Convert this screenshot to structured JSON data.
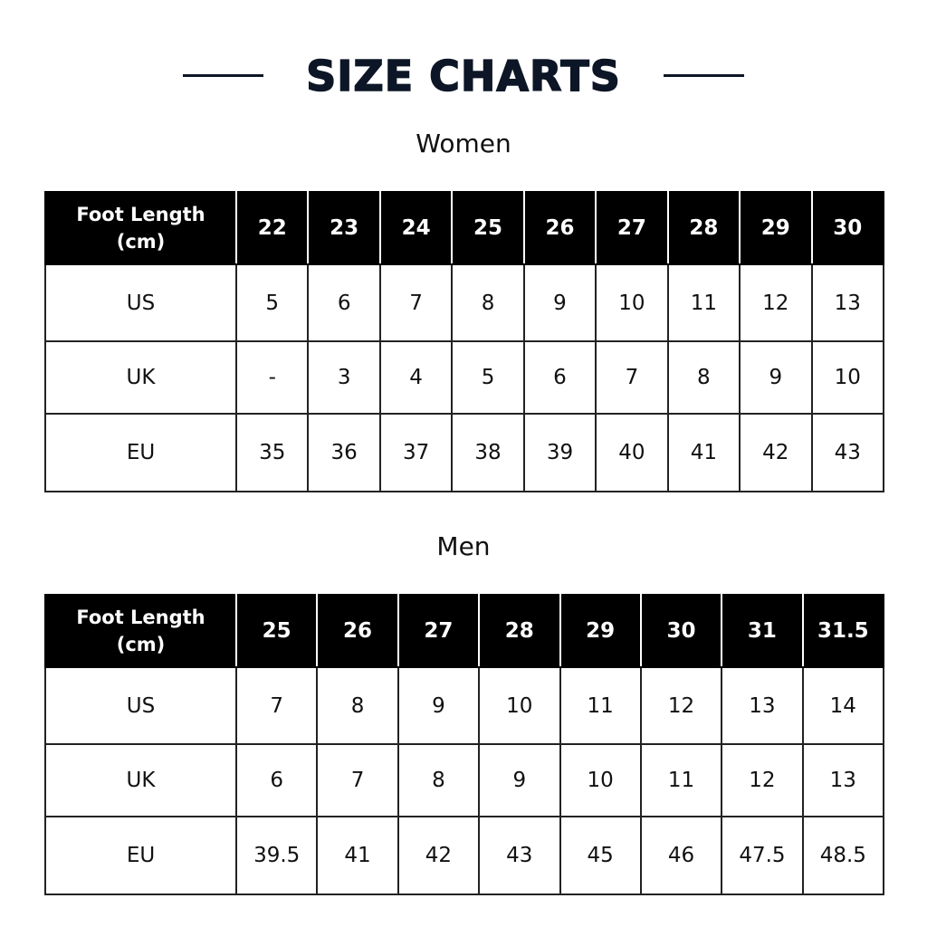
{
  "title": "SIZE CHARTS",
  "colors": {
    "title": "#0d1626",
    "header_bg": "#000000",
    "header_text": "#ffffff"
  },
  "chart_data": [
    {
      "type": "table",
      "title": "Women",
      "columns": [
        "Foot Length (cm)",
        "22",
        "23",
        "24",
        "25",
        "26",
        "27",
        "28",
        "29",
        "30"
      ],
      "rows": [
        [
          "US",
          "5",
          "6",
          "7",
          "8",
          "9",
          "10",
          "11",
          "12",
          "13"
        ],
        [
          "UK",
          "-",
          "3",
          "4",
          "5",
          "6",
          "7",
          "8",
          "9",
          "10"
        ],
        [
          "EU",
          "35",
          "36",
          "37",
          "38",
          "39",
          "40",
          "41",
          "42",
          "43"
        ]
      ]
    },
    {
      "type": "table",
      "title": "Men",
      "columns": [
        "Foot Length (cm)",
        "25",
        "26",
        "27",
        "28",
        "29",
        "30",
        "31",
        "31.5"
      ],
      "rows": [
        [
          "US",
          "7",
          "8",
          "9",
          "10",
          "11",
          "12",
          "13",
          "14"
        ],
        [
          "UK",
          "6",
          "7",
          "8",
          "9",
          "10",
          "11",
          "12",
          "13"
        ],
        [
          "EU",
          "39.5",
          "41",
          "42",
          "43",
          "45",
          "46",
          "47.5",
          "48.5"
        ]
      ]
    }
  ]
}
